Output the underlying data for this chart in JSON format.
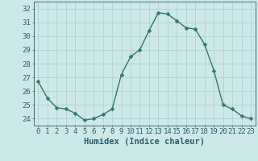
{
  "x": [
    0,
    1,
    2,
    3,
    4,
    5,
    6,
    7,
    8,
    9,
    10,
    11,
    12,
    13,
    14,
    15,
    16,
    17,
    18,
    19,
    20,
    21,
    22,
    23
  ],
  "y": [
    26.7,
    25.5,
    24.8,
    24.7,
    24.4,
    23.9,
    24.0,
    24.3,
    24.7,
    27.2,
    28.5,
    29.0,
    30.4,
    31.7,
    31.6,
    31.1,
    30.6,
    30.5,
    29.4,
    27.5,
    25.0,
    24.7,
    24.2,
    24.0
  ],
  "line_color": "#2d7a68",
  "marker": "D",
  "marker_size": 2.5,
  "bg_color": "#cce8e8",
  "grid_color": "#aacfcf",
  "xlabel": "Humidex (Indice chaleur)",
  "xlim": [
    -0.5,
    23.5
  ],
  "ylim": [
    23.5,
    32.5
  ],
  "yticks": [
    24,
    25,
    26,
    27,
    28,
    29,
    30,
    31,
    32
  ],
  "xticks": [
    0,
    1,
    2,
    3,
    4,
    5,
    6,
    7,
    8,
    9,
    10,
    11,
    12,
    13,
    14,
    15,
    16,
    17,
    18,
    19,
    20,
    21,
    22,
    23
  ],
  "text_color": "#2d5f6e",
  "xlabel_fontsize": 7.5,
  "tick_fontsize": 6.5,
  "line_width": 1.0
}
